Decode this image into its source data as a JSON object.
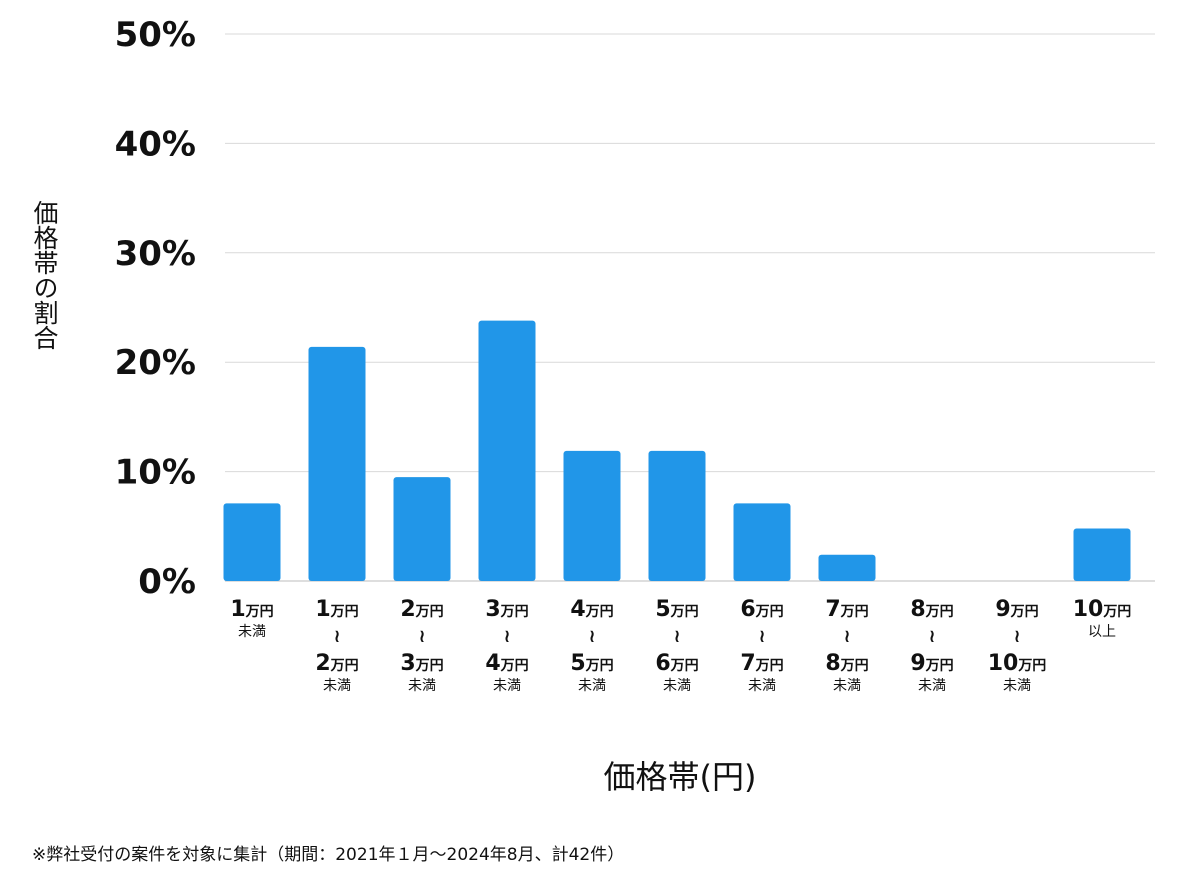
{
  "chart_data": {
    "type": "bar",
    "ylabel": "価格帯の割合",
    "xlabel": "価格帯(円)",
    "yticks": [
      "0%",
      "10%",
      "20%",
      "30%",
      "40%",
      "50%"
    ],
    "ylim": [
      0,
      50
    ],
    "grid": true,
    "bar_color": "#2196e8",
    "categories": [
      {
        "top": "1",
        "top_unit": "万円",
        "bottom": "",
        "bottom_unit": "",
        "note": "未満"
      },
      {
        "top": "1",
        "top_unit": "万円",
        "bottom": "2",
        "bottom_unit": "万円",
        "note": "未満"
      },
      {
        "top": "2",
        "top_unit": "万円",
        "bottom": "3",
        "bottom_unit": "万円",
        "note": "未満"
      },
      {
        "top": "3",
        "top_unit": "万円",
        "bottom": "4",
        "bottom_unit": "万円",
        "note": "未満"
      },
      {
        "top": "4",
        "top_unit": "万円",
        "bottom": "5",
        "bottom_unit": "万円",
        "note": "未満"
      },
      {
        "top": "5",
        "top_unit": "万円",
        "bottom": "6",
        "bottom_unit": "万円",
        "note": "未満"
      },
      {
        "top": "6",
        "top_unit": "万円",
        "bottom": "7",
        "bottom_unit": "万円",
        "note": "未満"
      },
      {
        "top": "7",
        "top_unit": "万円",
        "bottom": "8",
        "bottom_unit": "万円",
        "note": "未満"
      },
      {
        "top": "8",
        "top_unit": "万円",
        "bottom": "9",
        "bottom_unit": "万円",
        "note": "未満"
      },
      {
        "top": "9",
        "top_unit": "万円",
        "bottom": "10",
        "bottom_unit": "万円",
        "note": "未満"
      },
      {
        "top": "10",
        "top_unit": "万円",
        "bottom": "",
        "bottom_unit": "",
        "note": "以上"
      }
    ],
    "tilde": "≀",
    "values": [
      7.1,
      21.4,
      9.5,
      23.8,
      11.9,
      11.9,
      7.1,
      2.4,
      0,
      0,
      4.8
    ]
  },
  "footnote": "※弊社受付の案件を対象に集計（期間：2021年１月～2024年8月、計42件）"
}
